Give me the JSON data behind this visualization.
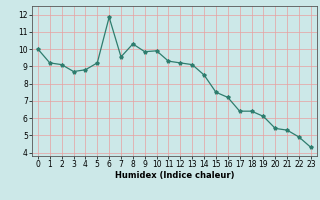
{
  "x": [
    0,
    1,
    2,
    3,
    4,
    5,
    6,
    7,
    8,
    9,
    10,
    11,
    12,
    13,
    14,
    15,
    16,
    17,
    18,
    19,
    20,
    21,
    22,
    23
  ],
  "y": [
    10.0,
    9.2,
    9.1,
    8.7,
    8.8,
    9.2,
    11.85,
    9.55,
    10.3,
    9.85,
    9.9,
    9.3,
    9.2,
    9.1,
    8.5,
    7.5,
    7.2,
    6.4,
    6.4,
    6.1,
    5.4,
    5.3,
    4.9,
    4.3
  ],
  "xlabel": "Humidex (Indice chaleur)",
  "xlim": [
    -0.5,
    23.5
  ],
  "ylim": [
    3.8,
    12.5
  ],
  "yticks": [
    4,
    5,
    6,
    7,
    8,
    9,
    10,
    11,
    12
  ],
  "xticks": [
    0,
    1,
    2,
    3,
    4,
    5,
    6,
    7,
    8,
    9,
    10,
    11,
    12,
    13,
    14,
    15,
    16,
    17,
    18,
    19,
    20,
    21,
    22,
    23
  ],
  "line_color": "#2e7d6e",
  "marker": "*",
  "bg_color": "#cce8e8",
  "grid_color_major": "#e8a0a0",
  "grid_color_minor": "#e8a0a0",
  "tick_color": "#000000",
  "label_color": "#000000"
}
